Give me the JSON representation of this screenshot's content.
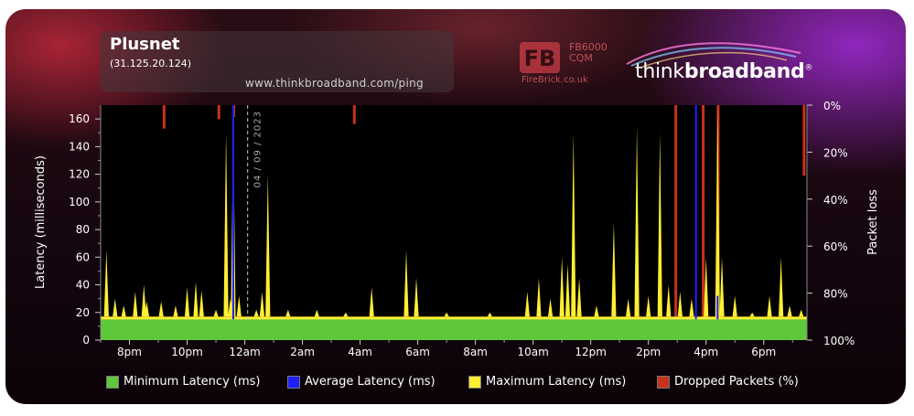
{
  "header": {
    "title": "Plusnet",
    "ip": "(31.125.20.124)",
    "url": "www.thinkbroadband.com/ping"
  },
  "sponsor": {
    "logo_letters": "FB",
    "line1": "FB6000",
    "line2": "CQM",
    "url": "FireBrick.co.uk"
  },
  "brand": {
    "think": "think",
    "broadband": "broadband",
    "registered": "®"
  },
  "colors": {
    "min": "#5ec83a",
    "avg": "#2020ff",
    "max": "#ffee33",
    "dropped": "#c8321c"
  },
  "chart_data": {
    "type": "area",
    "ylabel": "Latency (milliseconds)",
    "y2label": "Packet loss",
    "ylim": [
      0,
      170
    ],
    "yticks": [
      0,
      20,
      40,
      60,
      80,
      100,
      120,
      140,
      160
    ],
    "y2ticks": [
      "0%",
      "20%",
      "40%",
      "60%",
      "80%",
      "100%"
    ],
    "y2lim": [
      0,
      100
    ],
    "xlim_hours": [
      19,
      43.5
    ],
    "xticks": [
      {
        "h": 20,
        "label": "8pm"
      },
      {
        "h": 22,
        "label": "10pm"
      },
      {
        "h": 24,
        "label": "12am"
      },
      {
        "h": 26,
        "label": "2am"
      },
      {
        "h": 28,
        "label": "4am"
      },
      {
        "h": 30,
        "label": "6am"
      },
      {
        "h": 32,
        "label": "8am"
      },
      {
        "h": 34,
        "label": "10am"
      },
      {
        "h": 36,
        "label": "12pm"
      },
      {
        "h": 38,
        "label": "2pm"
      },
      {
        "h": 40,
        "label": "4pm"
      },
      {
        "h": 42,
        "label": "6pm"
      }
    ],
    "date_marker": {
      "h": 24.1,
      "label": "04 / 09 / 2023"
    },
    "min_latency_ms": 15,
    "avg_latency_ms": 16,
    "max_baseline_ms": 17,
    "max_spikes": [
      {
        "h": 19.2,
        "v": 65
      },
      {
        "h": 19.5,
        "v": 30
      },
      {
        "h": 19.8,
        "v": 25
      },
      {
        "h": 20.2,
        "v": 35
      },
      {
        "h": 20.5,
        "v": 40
      },
      {
        "h": 20.6,
        "v": 28
      },
      {
        "h": 21.1,
        "v": 28
      },
      {
        "h": 21.6,
        "v": 25
      },
      {
        "h": 22.0,
        "v": 38
      },
      {
        "h": 22.3,
        "v": 42
      },
      {
        "h": 22.5,
        "v": 36
      },
      {
        "h": 23.0,
        "v": 22
      },
      {
        "h": 23.35,
        "v": 150
      },
      {
        "h": 23.5,
        "v": 30
      },
      {
        "h": 23.6,
        "v": 155
      },
      {
        "h": 23.8,
        "v": 32
      },
      {
        "h": 24.4,
        "v": 22
      },
      {
        "h": 24.6,
        "v": 35
      },
      {
        "h": 24.8,
        "v": 120
      },
      {
        "h": 25.5,
        "v": 22
      },
      {
        "h": 26.5,
        "v": 22
      },
      {
        "h": 27.5,
        "v": 20
      },
      {
        "h": 28.4,
        "v": 38
      },
      {
        "h": 29.6,
        "v": 65
      },
      {
        "h": 29.95,
        "v": 45
      },
      {
        "h": 31.0,
        "v": 20
      },
      {
        "h": 32.5,
        "v": 20
      },
      {
        "h": 33.8,
        "v": 35
      },
      {
        "h": 34.2,
        "v": 45
      },
      {
        "h": 34.6,
        "v": 30
      },
      {
        "h": 35.0,
        "v": 60
      },
      {
        "h": 35.2,
        "v": 55
      },
      {
        "h": 35.4,
        "v": 150
      },
      {
        "h": 35.6,
        "v": 45
      },
      {
        "h": 36.2,
        "v": 25
      },
      {
        "h": 36.8,
        "v": 85
      },
      {
        "h": 37.3,
        "v": 30
      },
      {
        "h": 37.6,
        "v": 155
      },
      {
        "h": 38.0,
        "v": 32
      },
      {
        "h": 38.4,
        "v": 150
      },
      {
        "h": 38.7,
        "v": 40
      },
      {
        "h": 39.1,
        "v": 35
      },
      {
        "h": 39.5,
        "v": 30
      },
      {
        "h": 40.0,
        "v": 60
      },
      {
        "h": 40.4,
        "v": 170
      },
      {
        "h": 40.55,
        "v": 60
      },
      {
        "h": 41.0,
        "v": 32
      },
      {
        "h": 41.6,
        "v": 20
      },
      {
        "h": 42.2,
        "v": 32
      },
      {
        "h": 42.6,
        "v": 60
      },
      {
        "h": 42.9,
        "v": 25
      },
      {
        "h": 43.3,
        "v": 22
      }
    ],
    "avg_spikes": [
      {
        "h": 23.6,
        "v": 170
      },
      {
        "h": 39.65,
        "v": 170
      },
      {
        "h": 40.4,
        "v": 32
      }
    ],
    "dropped_packets_pct": [
      {
        "h": 21.2,
        "v": 10
      },
      {
        "h": 23.1,
        "v": 6
      },
      {
        "h": 23.62,
        "v": 5
      },
      {
        "h": 27.8,
        "v": 8
      },
      {
        "h": 38.95,
        "v": 100
      },
      {
        "h": 39.9,
        "v": 100
      },
      {
        "h": 40.42,
        "v": 100
      },
      {
        "h": 43.4,
        "v": 30
      }
    ],
    "legend": [
      {
        "label": "Minimum Latency (ms)",
        "color": "#5ec83a"
      },
      {
        "label": "Average Latency (ms)",
        "color": "#2020ff"
      },
      {
        "label": "Maximum Latency (ms)",
        "color": "#ffee33"
      },
      {
        "label": "Dropped Packets (%)",
        "color": "#c8321c"
      }
    ],
    "legend_placement": "bottom",
    "grid": false
  }
}
